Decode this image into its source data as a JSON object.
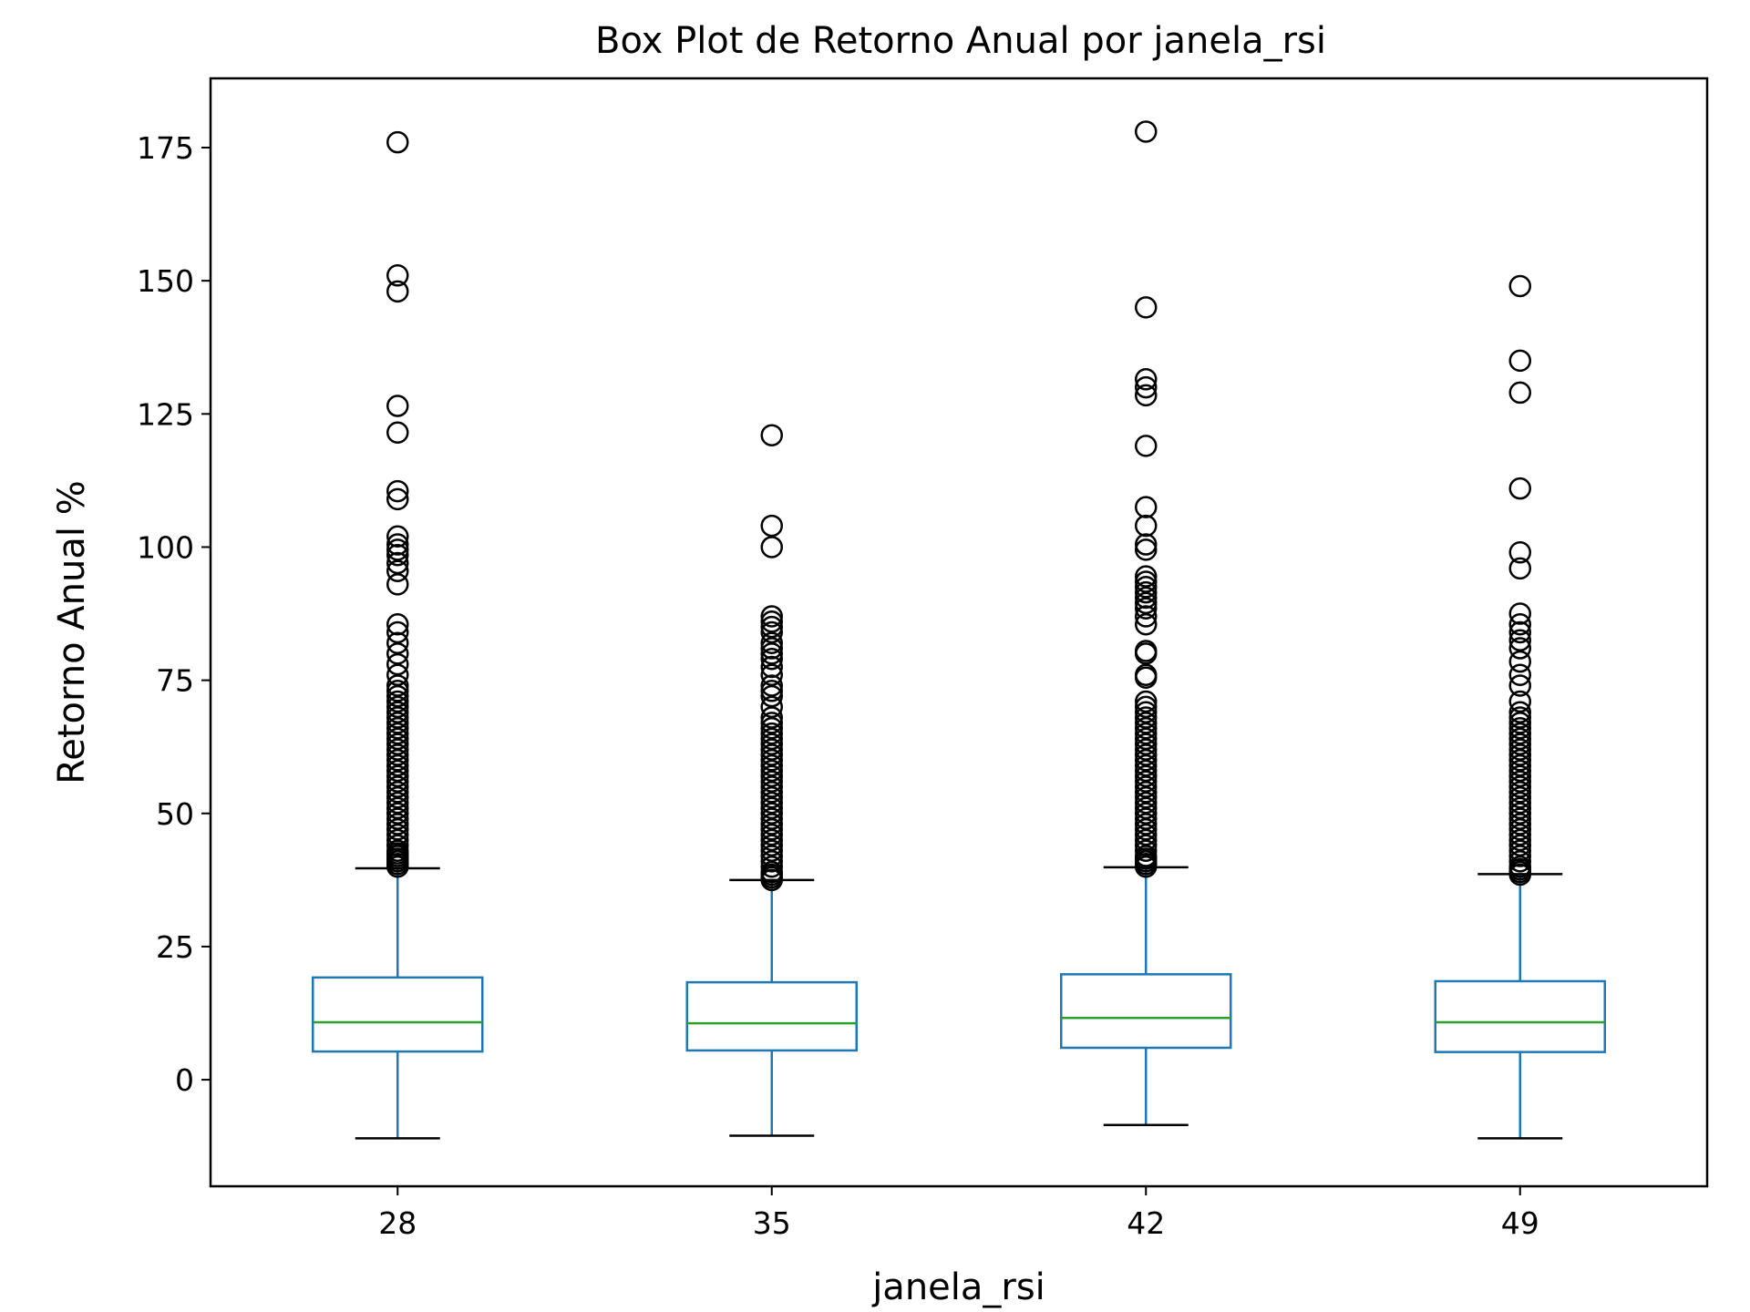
{
  "chart_data": {
    "type": "box",
    "title": "Box Plot de Retorno Anual por janela_rsi",
    "xlabel": "janela_rsi",
    "ylabel": "Retorno Anual %",
    "categories": [
      "28",
      "35",
      "42",
      "49"
    ],
    "ylim": [
      -20,
      188
    ],
    "yticks": [
      0,
      25,
      50,
      75,
      100,
      125,
      150,
      175
    ],
    "grid": false,
    "colors": {
      "box": "#1f77b4",
      "median": "#2ca02c",
      "whisker": "#1f77b4",
      "cap": "#000000",
      "flier": "#000000"
    },
    "boxes": [
      {
        "category": "28",
        "whisker_low": -11,
        "q1": 5.3,
        "median": 10.8,
        "q3": 19.2,
        "whisker_high": 39.7,
        "fliers": [
          40,
          40.5,
          41,
          41.5,
          42,
          42.5,
          43,
          44,
          45,
          46,
          47,
          48,
          49,
          50,
          51,
          52,
          53,
          54,
          55,
          56,
          57,
          58,
          59,
          60,
          61,
          62,
          63,
          64,
          65,
          66,
          67,
          68,
          69,
          70,
          71,
          72,
          73,
          74,
          76,
          78,
          80,
          82,
          84,
          85.5,
          93,
          95.5,
          97,
          98.5,
          99.5,
          100.5,
          102,
          109,
          110.5,
          121.5,
          126.5,
          148,
          151,
          176
        ]
      },
      {
        "category": "35",
        "whisker_low": -10.5,
        "q1": 5.5,
        "median": 10.6,
        "q3": 18.3,
        "whisker_high": 37.5,
        "fliers": [
          37.5,
          38,
          38.5,
          39,
          40,
          41,
          42,
          43,
          44,
          45,
          46,
          47,
          48,
          49,
          50,
          51,
          52,
          53,
          54,
          55,
          56,
          57,
          58,
          59,
          60,
          61,
          62,
          63,
          64,
          65,
          66,
          67,
          68,
          70,
          72,
          73,
          74,
          76,
          77.5,
          79,
          80,
          81,
          82,
          84,
          85,
          86,
          87,
          100,
          104,
          121
        ]
      },
      {
        "category": "42",
        "whisker_low": -8.5,
        "q1": 6,
        "median": 11.6,
        "q3": 19.8,
        "whisker_high": 39.9,
        "fliers": [
          40,
          40.5,
          41,
          41.5,
          42,
          43,
          44,
          45,
          46,
          47,
          48,
          49,
          50,
          51,
          52,
          53,
          54,
          55,
          56,
          57,
          58,
          59,
          60,
          61,
          62,
          63,
          64,
          65,
          66,
          67,
          68,
          69,
          70,
          71,
          75.5,
          76,
          80,
          80.5,
          85.5,
          87,
          88.5,
          89.5,
          90.5,
          91.5,
          92.5,
          93.5,
          94.5,
          99.5,
          100.5,
          104,
          107.5,
          119,
          128.5,
          130,
          131.5,
          145,
          178
        ]
      },
      {
        "category": "49",
        "whisker_low": -11,
        "q1": 5.2,
        "median": 10.8,
        "q3": 18.5,
        "whisker_high": 38.6,
        "fliers": [
          38.5,
          39,
          39.5,
          40,
          41,
          42,
          43,
          44,
          45,
          46,
          47,
          48,
          49,
          50,
          51,
          52,
          53,
          54,
          55,
          56,
          57,
          58,
          59,
          60,
          61,
          62,
          63,
          64,
          65,
          66,
          67,
          68,
          69,
          71,
          74,
          76,
          78.5,
          81,
          82.5,
          84,
          85.5,
          87.5,
          96,
          99,
          111,
          129,
          135,
          149
        ]
      }
    ]
  }
}
